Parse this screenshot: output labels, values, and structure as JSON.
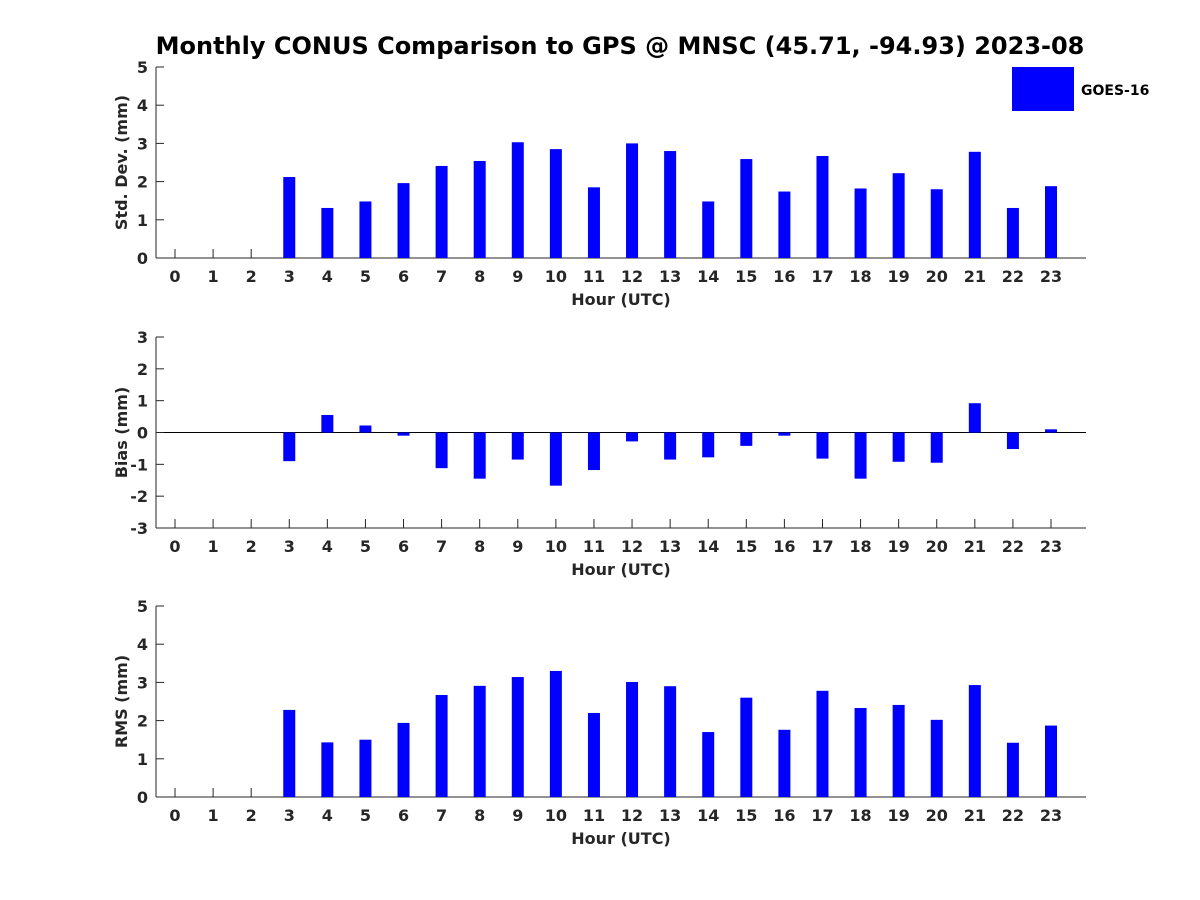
{
  "chart_data": {
    "title": "Monthly CONUS Comparison to GPS @ MNSC (45.71, -94.93) 2023-08",
    "legend": [
      {
        "label": "GOES-16",
        "color": "#0000ff",
        "position": "top-right"
      }
    ],
    "categories": [
      "0",
      "1",
      "2",
      "3",
      "4",
      "5",
      "6",
      "7",
      "8",
      "9",
      "10",
      "11",
      "12",
      "13",
      "14",
      "15",
      "16",
      "17",
      "18",
      "19",
      "20",
      "21",
      "22",
      "23"
    ],
    "panels": [
      {
        "type": "bar",
        "xlabel": "Hour (UTC)",
        "ylabel": "Std. Dev. (mm)",
        "ylim": [
          0,
          5
        ],
        "yticks": [
          0,
          1,
          2,
          3,
          4,
          5
        ],
        "series": [
          {
            "name": "GOES-16",
            "values": [
              null,
              null,
              null,
              2.12,
              1.31,
              1.48,
              1.96,
              2.41,
              2.54,
              3.03,
              2.85,
              1.85,
              3.0,
              2.8,
              1.48,
              2.59,
              1.74,
              2.67,
              1.82,
              2.22,
              1.8,
              2.78,
              1.31,
              1.88
            ]
          }
        ]
      },
      {
        "type": "bar",
        "xlabel": "Hour (UTC)",
        "ylabel": "Bias (mm)",
        "ylim": [
          -3,
          3
        ],
        "yticks": [
          -3,
          -2,
          -1,
          0,
          1,
          2,
          3
        ],
        "series": [
          {
            "name": "GOES-16",
            "values": [
              null,
              null,
              null,
              -0.9,
              0.55,
              0.22,
              -0.1,
              -1.12,
              -1.45,
              -0.85,
              -1.67,
              -1.18,
              -0.28,
              -0.85,
              -0.78,
              -0.42,
              -0.1,
              -0.82,
              -1.45,
              -0.92,
              -0.95,
              0.92,
              -0.52,
              0.1
            ]
          }
        ]
      },
      {
        "type": "bar",
        "xlabel": "Hour (UTC)",
        "ylabel": "RMS (mm)",
        "ylim": [
          0,
          5
        ],
        "yticks": [
          0,
          1,
          2,
          3,
          4,
          5
        ],
        "series": [
          {
            "name": "GOES-16",
            "values": [
              null,
              null,
              null,
              2.28,
              1.43,
              1.5,
              1.94,
              2.67,
              2.91,
              3.14,
              3.3,
              2.2,
              3.01,
              2.9,
              1.7,
              2.6,
              1.76,
              2.78,
              2.33,
              2.41,
              2.02,
              2.93,
              1.42,
              1.87
            ]
          }
        ]
      }
    ]
  }
}
